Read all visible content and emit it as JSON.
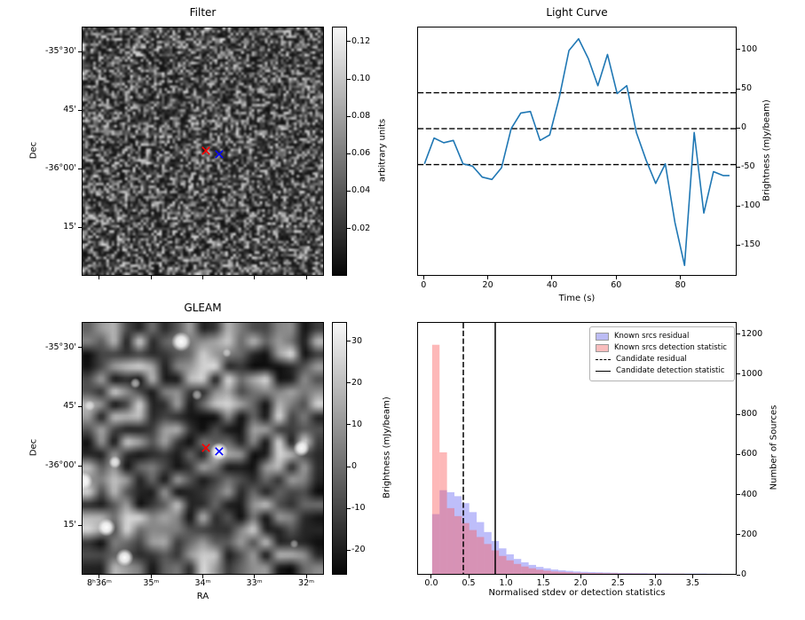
{
  "figure": {
    "background": "#ffffff"
  },
  "colors": {
    "line": "#1f77b4",
    "marker_red": "#ff0000",
    "marker_blue": "#0000ff",
    "residual_bar": "rgba(70,70,240,0.35)",
    "detection_bar": "rgba(250,85,85,0.42)",
    "residual_patch": "#bcbcf4",
    "detection_patch": "#f9bdbd",
    "dashed_line": "#000000",
    "solid_line": "#000000"
  },
  "chart_data": [
    {
      "type": "heatmap",
      "id": "filter",
      "title": "Filter",
      "ylabel": "Dec",
      "ytick_labels": [
        "-35°30'",
        "45'",
        "-36°00'",
        "15'"
      ],
      "colorbar": {
        "label": "arbitrary units",
        "ticks": [
          "0.12",
          "0.10",
          "0.08",
          "0.06",
          "0.04",
          "0.02"
        ]
      },
      "content": "grayscale fine-grained noise map (arbitrary units 0.02-0.12)",
      "markers": [
        {
          "symbol": "x",
          "color": "red",
          "fx": 0.513,
          "fy": 0.498
        },
        {
          "symbol": "x",
          "color": "blue",
          "fx": 0.568,
          "fy": 0.512
        }
      ]
    },
    {
      "type": "line",
      "id": "light-curve",
      "title": "Light Curve",
      "xlabel": "Time (s)",
      "ylabel": "Brightness (mJy/beam)",
      "x": [
        0,
        3,
        6,
        9,
        12,
        15,
        18,
        21,
        24,
        27,
        30,
        33,
        36,
        39,
        42,
        45,
        48,
        51,
        54,
        57,
        60,
        63,
        66,
        69,
        72,
        75,
        78,
        81,
        84,
        87,
        90,
        93,
        95
      ],
      "y": [
        -45,
        -12,
        -18,
        -15,
        -45,
        -48,
        -62,
        -65,
        -50,
        0,
        20,
        22,
        -15,
        -8,
        40,
        100,
        115,
        90,
        55,
        95,
        45,
        55,
        -5,
        -40,
        -70,
        -45,
        -120,
        -175,
        -5,
        -108,
        -55,
        -60,
        -60
      ],
      "hlines": [
        46,
        0,
        -46
      ],
      "xticks": [
        0,
        20,
        40,
        60,
        80
      ],
      "yticks": [
        100,
        50,
        0,
        -50,
        -100,
        -150
      ],
      "xlim": [
        -2,
        97.5
      ],
      "ylim": [
        -189.5,
        129.5
      ],
      "grid": false
    },
    {
      "type": "heatmap",
      "id": "gleam",
      "title": "GLEAM",
      "xlabel": "RA",
      "ylabel": "Dec",
      "xtick_labels": [
        "8ʰ36ᵐ",
        "35ᵐ",
        "34ᵐ",
        "33ᵐ",
        "32ᵐ"
      ],
      "ytick_labels": [
        "-35°30'",
        "45'",
        "-36°00'",
        "15'"
      ],
      "colorbar": {
        "label": "Brightness (mJy/beam)",
        "ticks": [
          "30",
          "20",
          "10",
          "0",
          "-10",
          "-20"
        ]
      },
      "content": "smoothed grayscale sky map with bright point sources",
      "sources": [
        {
          "fx": 0.41,
          "fy": 0.075,
          "r": 11,
          "a": 1.0
        },
        {
          "fx": 0.568,
          "fy": 0.512,
          "r": 10,
          "a": 1.0
        },
        {
          "fx": 0.91,
          "fy": 0.5,
          "r": 9,
          "a": 0.95
        },
        {
          "fx": 0.005,
          "fy": 0.63,
          "r": 10,
          "a": 1.0
        },
        {
          "fx": 0.1,
          "fy": 0.815,
          "r": 10,
          "a": 1.0
        },
        {
          "fx": 0.175,
          "fy": 0.935,
          "r": 10,
          "a": 1.0
        },
        {
          "fx": 0.135,
          "fy": 0.555,
          "r": 7,
          "a": 0.8
        },
        {
          "fx": 0.22,
          "fy": 0.24,
          "r": 6,
          "a": 0.6
        },
        {
          "fx": 0.476,
          "fy": 0.287,
          "r": 6,
          "a": 0.55
        },
        {
          "fx": 0.6,
          "fy": 0.12,
          "r": 5,
          "a": 0.5
        },
        {
          "fx": 0.03,
          "fy": 0.33,
          "r": 6,
          "a": 0.55
        },
        {
          "fx": 0.88,
          "fy": 0.88,
          "r": 5,
          "a": 0.45
        }
      ],
      "markers": [
        {
          "symbol": "x",
          "color": "red",
          "fx": 0.513,
          "fy": 0.498
        },
        {
          "symbol": "x",
          "color": "blue",
          "fx": 0.568,
          "fy": 0.512
        }
      ]
    },
    {
      "type": "bar",
      "id": "histogram",
      "title": "",
      "xlabel": "Normalised stdev or detection statistics",
      "ylabel": "Number of Sources",
      "bin_start": 0,
      "bin_width": 0.1,
      "series": [
        {
          "name": "Known srcs residual",
          "values": [
            300,
            420,
            410,
            390,
            355,
            310,
            260,
            210,
            165,
            128,
            98,
            75,
            58,
            45,
            35,
            28,
            22,
            18,
            15,
            12,
            10,
            9,
            8,
            7,
            6,
            5,
            5,
            4,
            4,
            3,
            3,
            3,
            2,
            2,
            2,
            2,
            2,
            1,
            1
          ]
        },
        {
          "name": "Known srcs detection statistic",
          "values": [
            1150,
            610,
            330,
            290,
            255,
            220,
            185,
            150,
            118,
            90,
            68,
            50,
            37,
            28,
            21,
            16,
            12,
            10,
            8,
            6,
            5,
            4,
            4,
            3,
            3,
            2,
            2,
            2,
            1,
            1,
            1,
            1,
            1,
            1,
            0,
            0,
            0,
            0,
            0
          ]
        }
      ],
      "vlines": [
        {
          "name": "Candidate residual",
          "x": 0.42,
          "style": "dashed"
        },
        {
          "name": "Candidate detection statistic",
          "x": 0.85,
          "style": "solid"
        }
      ],
      "xticks": [
        "0.0",
        "0.5",
        "1.0",
        "1.5",
        "2.0",
        "2.5",
        "3.0",
        "3.5"
      ],
      "yticks": [
        0,
        200,
        400,
        600,
        800,
        1000,
        1200
      ],
      "xlim": [
        -0.19,
        4.09
      ],
      "ylim": [
        0,
        1260
      ],
      "legend_position": "upper right"
    }
  ]
}
